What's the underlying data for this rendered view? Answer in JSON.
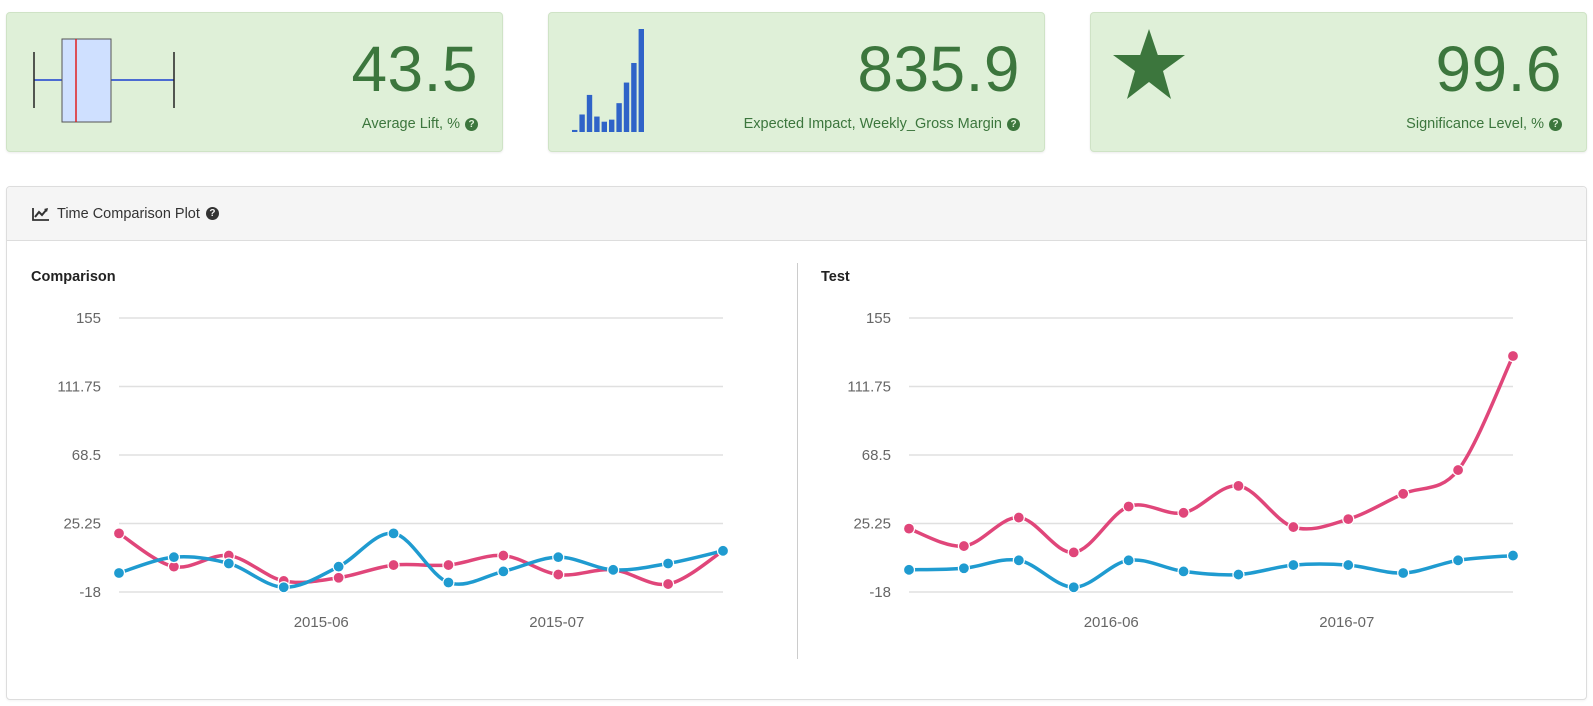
{
  "kpis": [
    {
      "value": "43.5",
      "label": "Average Lift, %",
      "icon": "boxplot-icon"
    },
    {
      "value": "835.9",
      "label": "Expected Impact, Weekly_Gross Margin",
      "icon": "bar-sparkline-icon"
    },
    {
      "value": "99.6",
      "label": "Significance Level, %",
      "icon": "star-icon"
    }
  ],
  "help_glyph": "?",
  "panel": {
    "title": "Time Comparison Plot",
    "icon": "line-chart-icon"
  },
  "colors": {
    "kpi_bg": "#dff0d8",
    "kpi_text": "#3c763d",
    "series_pink": "#e0467a",
    "series_blue": "#1f9bd0",
    "bar_blue": "#2f63c8",
    "box_fill": "#cfe0ff",
    "box_median": "#e02020",
    "whisker": "#1a3fd0"
  },
  "kpi_box": {
    "min": 0.0,
    "q1": 0.2,
    "median": 0.3,
    "q3": 0.55,
    "max": 1.0
  },
  "kpi_bars": [
    0.02,
    0.17,
    0.36,
    0.15,
    0.1,
    0.12,
    0.28,
    0.48,
    0.67,
    1.0
  ],
  "chart_data": [
    {
      "type": "line",
      "title": "Comparison",
      "x_ticks": [
        "2015-06",
        "2015-07"
      ],
      "y_ticks": [
        "155",
        "111.75",
        "68.5",
        "25.25",
        "-18"
      ],
      "ylim": [
        -18,
        155
      ],
      "grid": true,
      "series": [
        {
          "color": "#e0467a",
          "values": [
            19,
            -2,
            5,
            -11,
            -9,
            -1,
            -1,
            5,
            -7,
            -4,
            -13,
            8
          ]
        },
        {
          "color": "#1f9bd0",
          "values": [
            -6,
            4,
            0,
            -15,
            -2,
            19,
            -12,
            -5,
            4,
            -4,
            0,
            8
          ]
        }
      ]
    },
    {
      "type": "line",
      "title": "Test",
      "x_ticks": [
        "2016-06",
        "2016-07"
      ],
      "y_ticks": [
        "155",
        "111.75",
        "68.5",
        "25.25",
        "-18"
      ],
      "ylim": [
        -18,
        155
      ],
      "grid": true,
      "series": [
        {
          "color": "#e0467a",
          "values": [
            22,
            11,
            29,
            7,
            36,
            32,
            49,
            23,
            28,
            44,
            59,
            131
          ]
        },
        {
          "color": "#1f9bd0",
          "values": [
            -4,
            -3,
            2,
            -15,
            2,
            -5,
            -7,
            -1,
            -1,
            -6,
            2,
            5
          ]
        }
      ]
    }
  ]
}
